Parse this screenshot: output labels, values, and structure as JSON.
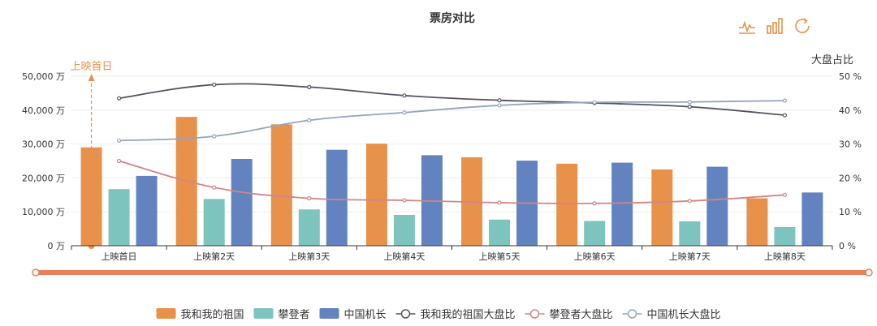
{
  "toolbox": {
    "icons": [
      "line-chart-icon",
      "bar-chart-icon",
      "restore-icon"
    ],
    "accent": "#E8914B"
  },
  "chart_data": {
    "type": "bar",
    "title": "票房对比",
    "categories": [
      "上映首日",
      "上映第2天",
      "上映第3天",
      "上映第4天",
      "上映第5天",
      "上映第6天",
      "上映第7天",
      "上映第8天"
    ],
    "y_left": {
      "ylim": [
        0,
        50000
      ],
      "ticks": [
        "0 万",
        "10,000 万",
        "20,000 万",
        "30,000 万",
        "40,000 万",
        "50,000 万"
      ],
      "tick_values": [
        0,
        10000,
        20000,
        30000,
        40000,
        50000
      ]
    },
    "y_right": {
      "label": "大盘占比",
      "ylim": [
        0,
        50
      ],
      "ticks": [
        "0 %",
        "10 %",
        "20 %",
        "30 %",
        "40 %",
        "50 %"
      ],
      "tick_values": [
        0,
        10,
        20,
        30,
        40,
        50
      ]
    },
    "bar_series": [
      {
        "name": "我和我的祖国",
        "color": "#E8914B",
        "values": [
          29000,
          38000,
          35800,
          30100,
          26100,
          24200,
          22500,
          14000
        ]
      },
      {
        "name": "攀登者",
        "color": "#7DC4BE",
        "values": [
          16700,
          13800,
          10700,
          9100,
          7700,
          7300,
          7200,
          5500
        ]
      },
      {
        "name": "中国机长",
        "color": "#6383C0",
        "values": [
          20600,
          25600,
          28300,
          26700,
          25100,
          24500,
          23300,
          15700
        ]
      }
    ],
    "line_series": [
      {
        "name": "我和我的祖国大盘比",
        "color": "#55525F",
        "values": [
          43.5,
          47.5,
          46.8,
          44.3,
          42.9,
          42.1,
          41.0,
          38.5
        ]
      },
      {
        "name": "攀登者大盘比",
        "color": "#D38585",
        "values": [
          25.0,
          17.2,
          14.0,
          13.4,
          12.7,
          12.5,
          13.2,
          15.0
        ]
      },
      {
        "name": "中国机长大盘比",
        "color": "#92A5BF",
        "values": [
          31.0,
          32.3,
          37.0,
          39.3,
          41.4,
          42.3,
          42.4,
          42.8
        ]
      }
    ],
    "mark_line": {
      "label": "上映首日",
      "category_index": 0,
      "color": "#E8914B"
    },
    "legend": "bottom",
    "grid": true
  }
}
